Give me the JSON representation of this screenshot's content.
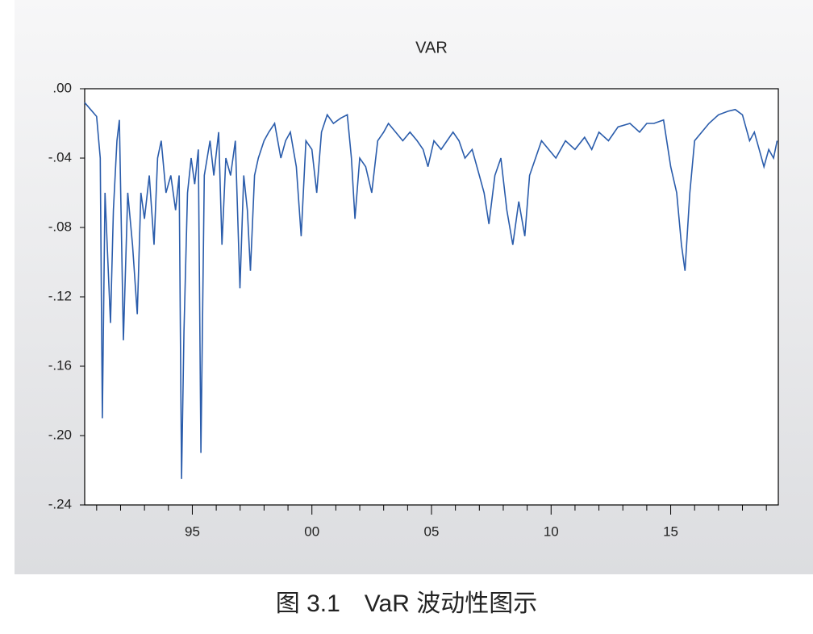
{
  "chart_data": {
    "type": "line",
    "title": "VAR",
    "caption": "图 3.1　VaR 波动性图示",
    "xlim": [
      1990.5,
      2019.5
    ],
    "xticks": [
      {
        "value": 1995,
        "label": "95"
      },
      {
        "value": 2000,
        "label": "00"
      },
      {
        "value": 2005,
        "label": "05"
      },
      {
        "value": 2010,
        "label": "10"
      },
      {
        "value": 2015,
        "label": "15"
      }
    ],
    "xminorticks": [
      1991,
      1992,
      1993,
      1994,
      1996,
      1997,
      1998,
      1999,
      2001,
      2002,
      2003,
      2004,
      2006,
      2007,
      2008,
      2009,
      2011,
      2012,
      2013,
      2014,
      2016,
      2017,
      2018,
      2019
    ],
    "ylim": [
      -0.24,
      0
    ],
    "yticks": [
      {
        "value": -0.24,
        "label": "-.24"
      },
      {
        "value": -0.2,
        "label": "-.20"
      },
      {
        "value": -0.16,
        "label": "-.16"
      },
      {
        "value": -0.12,
        "label": "-.12"
      },
      {
        "value": -0.08,
        "label": "-.08"
      },
      {
        "value": -0.04,
        "label": "-.04"
      },
      {
        "value": 0,
        "label": ".00"
      }
    ],
    "series": [
      {
        "color": "#2a5cab",
        "x": [
          1990.5,
          1990.75,
          1991.0,
          1991.15,
          1991.24,
          1991.35,
          1991.5,
          1991.58,
          1991.7,
          1991.85,
          1991.95,
          1992.12,
          1992.3,
          1992.5,
          1992.7,
          1992.85,
          1993.0,
          1993.2,
          1993.4,
          1993.55,
          1993.7,
          1993.9,
          1994.1,
          1994.3,
          1994.45,
          1994.55,
          1994.65,
          1994.8,
          1994.95,
          1995.1,
          1995.25,
          1995.36,
          1995.5,
          1995.74,
          1995.9,
          1996.1,
          1996.24,
          1996.4,
          1996.6,
          1996.8,
          1996.99,
          1997.15,
          1997.3,
          1997.43,
          1997.6,
          1997.76,
          1998.0,
          1998.2,
          1998.44,
          1998.7,
          1998.9,
          1999.1,
          1999.35,
          1999.55,
          1999.75,
          2000.0,
          2000.2,
          2000.4,
          2000.64,
          2000.9,
          2001.2,
          2001.48,
          2001.65,
          2001.8,
          2002.0,
          2002.25,
          2002.5,
          2002.75,
          2003.0,
          2003.2,
          2003.5,
          2003.8,
          2004.1,
          2004.4,
          2004.65,
          2004.85,
          2005.1,
          2005.4,
          2005.65,
          2005.9,
          2006.15,
          2006.4,
          2006.7,
          2007.0,
          2007.2,
          2007.4,
          2007.65,
          2007.9,
          2008.15,
          2008.4,
          2008.65,
          2008.9,
          2009.1,
          2009.35,
          2009.6,
          2009.9,
          2010.2,
          2010.6,
          2011.0,
          2011.4,
          2011.7,
          2012.0,
          2012.4,
          2012.8,
          2013.3,
          2013.7,
          2014.0,
          2014.3,
          2014.7,
          2015.0,
          2015.25,
          2015.45,
          2015.6,
          2015.8,
          2016.0,
          2016.3,
          2016.6,
          2017.0,
          2017.4,
          2017.7,
          2018.0,
          2018.3,
          2018.5,
          2018.7,
          2018.9,
          2019.1,
          2019.3,
          2019.45
        ],
        "values": [
          -0.008,
          -0.012,
          -0.016,
          -0.04,
          -0.19,
          -0.06,
          -0.11,
          -0.135,
          -0.07,
          -0.03,
          -0.018,
          -0.145,
          -0.06,
          -0.09,
          -0.13,
          -0.06,
          -0.075,
          -0.05,
          -0.09,
          -0.04,
          -0.03,
          -0.06,
          -0.05,
          -0.07,
          -0.05,
          -0.225,
          -0.14,
          -0.06,
          -0.04,
          -0.055,
          -0.035,
          -0.21,
          -0.05,
          -0.03,
          -0.05,
          -0.025,
          -0.09,
          -0.04,
          -0.05,
          -0.03,
          -0.115,
          -0.05,
          -0.07,
          -0.105,
          -0.05,
          -0.04,
          -0.03,
          -0.025,
          -0.02,
          -0.04,
          -0.03,
          -0.025,
          -0.045,
          -0.085,
          -0.03,
          -0.035,
          -0.06,
          -0.025,
          -0.015,
          -0.02,
          -0.017,
          -0.015,
          -0.04,
          -0.075,
          -0.04,
          -0.045,
          -0.06,
          -0.03,
          -0.025,
          -0.02,
          -0.025,
          -0.03,
          -0.025,
          -0.03,
          -0.035,
          -0.045,
          -0.03,
          -0.035,
          -0.03,
          -0.025,
          -0.03,
          -0.04,
          -0.035,
          -0.05,
          -0.06,
          -0.078,
          -0.05,
          -0.04,
          -0.07,
          -0.09,
          -0.065,
          -0.085,
          -0.05,
          -0.04,
          -0.03,
          -0.035,
          -0.04,
          -0.03,
          -0.035,
          -0.028,
          -0.035,
          -0.025,
          -0.03,
          -0.022,
          -0.02,
          -0.025,
          -0.02,
          -0.02,
          -0.018,
          -0.045,
          -0.06,
          -0.09,
          -0.105,
          -0.06,
          -0.03,
          -0.025,
          -0.02,
          -0.015,
          -0.013,
          -0.012,
          -0.015,
          -0.03,
          -0.025,
          -0.035,
          -0.045,
          -0.035,
          -0.04,
          -0.03
        ]
      }
    ]
  }
}
